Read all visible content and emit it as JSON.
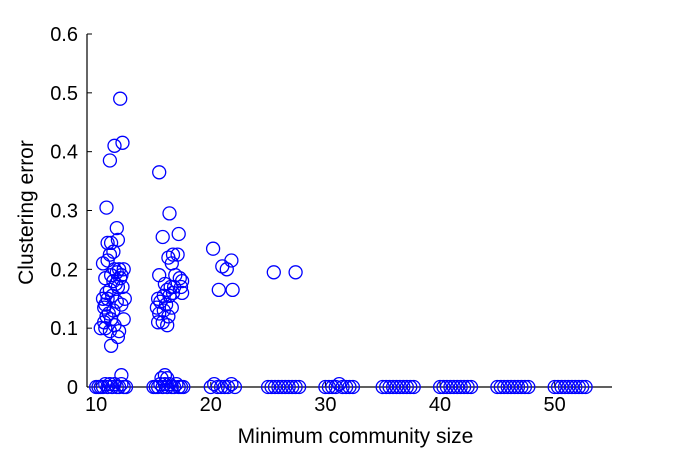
{
  "chart_data": {
    "type": "scatter",
    "title": "",
    "xlabel": "Minimum community size",
    "ylabel": "Clustering error",
    "xlim": [
      9.2,
      55
    ],
    "ylim": [
      0,
      0.6
    ],
    "xticks": [
      10,
      20,
      30,
      40,
      50
    ],
    "yticks": [
      0,
      0.1,
      0.2,
      0.3,
      0.4,
      0.5,
      0.6
    ],
    "grid": false,
    "legend": "none",
    "marker": "circle",
    "marker_color": "#0000ff",
    "series": [
      {
        "points": [
          [
            12.1,
            0.49
          ],
          [
            12.3,
            0.415
          ],
          [
            11.6,
            0.41
          ],
          [
            11.2,
            0.385
          ],
          [
            10.9,
            0.305
          ],
          [
            11.8,
            0.27
          ],
          [
            11.0,
            0.245
          ],
          [
            11.3,
            0.245
          ],
          [
            11.9,
            0.25
          ],
          [
            11.5,
            0.23
          ],
          [
            11.2,
            0.225
          ],
          [
            11.0,
            0.215
          ],
          [
            10.6,
            0.21
          ],
          [
            11.6,
            0.2
          ],
          [
            12.0,
            0.2
          ],
          [
            12.4,
            0.2
          ],
          [
            11.8,
            0.195
          ],
          [
            11.3,
            0.19
          ],
          [
            12.2,
            0.19
          ],
          [
            10.8,
            0.185
          ],
          [
            11.5,
            0.18
          ],
          [
            12.1,
            0.185
          ],
          [
            11.7,
            0.175
          ],
          [
            11.9,
            0.17
          ],
          [
            11.2,
            0.165
          ],
          [
            12.3,
            0.17
          ],
          [
            10.9,
            0.16
          ],
          [
            11.4,
            0.155
          ],
          [
            10.6,
            0.15
          ],
          [
            11.0,
            0.15
          ],
          [
            12.5,
            0.15
          ],
          [
            11.8,
            0.145
          ],
          [
            10.8,
            0.14
          ],
          [
            12.2,
            0.14
          ],
          [
            10.7,
            0.135
          ],
          [
            11.5,
            0.13
          ],
          [
            11.1,
            0.125
          ],
          [
            10.9,
            0.12
          ],
          [
            11.3,
            0.115
          ],
          [
            12.4,
            0.115
          ],
          [
            10.7,
            0.11
          ],
          [
            11.6,
            0.105
          ],
          [
            10.4,
            0.1
          ],
          [
            10.8,
            0.1
          ],
          [
            11.2,
            0.095
          ],
          [
            12.0,
            0.095
          ],
          [
            11.9,
            0.085
          ],
          [
            11.3,
            0.07
          ],
          [
            12.2,
            0.02
          ],
          [
            15.5,
            0.365
          ],
          [
            16.4,
            0.295
          ],
          [
            15.8,
            0.255
          ],
          [
            17.2,
            0.26
          ],
          [
            16.7,
            0.225
          ],
          [
            17.1,
            0.225
          ],
          [
            16.3,
            0.22
          ],
          [
            16.6,
            0.21
          ],
          [
            15.5,
            0.19
          ],
          [
            16.9,
            0.19
          ],
          [
            17.3,
            0.185
          ],
          [
            16.0,
            0.175
          ],
          [
            17.5,
            0.18
          ],
          [
            16.5,
            0.17
          ],
          [
            16.8,
            0.17
          ],
          [
            17.4,
            0.17
          ],
          [
            16.2,
            0.165
          ],
          [
            16.7,
            0.16
          ],
          [
            17.5,
            0.16
          ],
          [
            15.9,
            0.155
          ],
          [
            16.4,
            0.155
          ],
          [
            15.4,
            0.15
          ],
          [
            15.6,
            0.145
          ],
          [
            16.1,
            0.14
          ],
          [
            15.3,
            0.135
          ],
          [
            16.6,
            0.135
          ],
          [
            15.9,
            0.13
          ],
          [
            15.5,
            0.125
          ],
          [
            16.3,
            0.12
          ],
          [
            15.4,
            0.11
          ],
          [
            15.8,
            0.11
          ],
          [
            16.2,
            0.105
          ],
          [
            16.0,
            0.02
          ],
          [
            15.7,
            0.015
          ],
          [
            16.2,
            0.015
          ],
          [
            20.2,
            0.235
          ],
          [
            21.0,
            0.205
          ],
          [
            21.8,
            0.215
          ],
          [
            21.4,
            0.2
          ],
          [
            20.7,
            0.165
          ],
          [
            21.9,
            0.165
          ],
          [
            25.5,
            0.195
          ],
          [
            27.4,
            0.195
          ],
          [
            10.0,
            0
          ],
          [
            10.2,
            0
          ],
          [
            10.4,
            0
          ],
          [
            10.6,
            0
          ],
          [
            10.8,
            0.005
          ],
          [
            11.0,
            0
          ],
          [
            11.2,
            0.005
          ],
          [
            11.4,
            0
          ],
          [
            11.6,
            0.005
          ],
          [
            11.8,
            0
          ],
          [
            12.0,
            0
          ],
          [
            12.2,
            0.005
          ],
          [
            12.4,
            0
          ],
          [
            12.6,
            0
          ],
          [
            15.0,
            0
          ],
          [
            15.2,
            0
          ],
          [
            15.4,
            0
          ],
          [
            15.6,
            0.005
          ],
          [
            15.8,
            0
          ],
          [
            16.0,
            0.005
          ],
          [
            16.2,
            0
          ],
          [
            16.4,
            0.005
          ],
          [
            16.6,
            0
          ],
          [
            16.8,
            0
          ],
          [
            17.0,
            0.005
          ],
          [
            17.2,
            0
          ],
          [
            17.4,
            0
          ],
          [
            17.6,
            0
          ],
          [
            20.0,
            0
          ],
          [
            20.3,
            0.005
          ],
          [
            20.6,
            0
          ],
          [
            20.9,
            0
          ],
          [
            21.2,
            0
          ],
          [
            21.5,
            0
          ],
          [
            21.8,
            0.005
          ],
          [
            22.1,
            0
          ],
          [
            25.0,
            0
          ],
          [
            25.3,
            0
          ],
          [
            25.6,
            0
          ],
          [
            25.9,
            0
          ],
          [
            26.2,
            0
          ],
          [
            26.5,
            0
          ],
          [
            26.8,
            0
          ],
          [
            27.1,
            0
          ],
          [
            27.4,
            0
          ],
          [
            27.7,
            0
          ],
          [
            30.0,
            0
          ],
          [
            30.3,
            0
          ],
          [
            30.6,
            0
          ],
          [
            30.9,
            0
          ],
          [
            31.2,
            0.005
          ],
          [
            31.5,
            0
          ],
          [
            31.8,
            0
          ],
          [
            32.1,
            0
          ],
          [
            32.4,
            0
          ],
          [
            35.0,
            0
          ],
          [
            35.3,
            0
          ],
          [
            35.6,
            0
          ],
          [
            35.9,
            0
          ],
          [
            36.2,
            0
          ],
          [
            36.5,
            0
          ],
          [
            36.8,
            0
          ],
          [
            37.1,
            0
          ],
          [
            37.4,
            0
          ],
          [
            37.7,
            0
          ],
          [
            40.0,
            0
          ],
          [
            40.3,
            0
          ],
          [
            40.6,
            0
          ],
          [
            40.9,
            0
          ],
          [
            41.2,
            0
          ],
          [
            41.5,
            0
          ],
          [
            41.8,
            0
          ],
          [
            42.1,
            0
          ],
          [
            42.4,
            0
          ],
          [
            42.7,
            0
          ],
          [
            45.0,
            0
          ],
          [
            45.3,
            0
          ],
          [
            45.6,
            0
          ],
          [
            45.9,
            0
          ],
          [
            46.2,
            0
          ],
          [
            46.5,
            0
          ],
          [
            46.8,
            0
          ],
          [
            47.1,
            0
          ],
          [
            47.4,
            0
          ],
          [
            47.7,
            0
          ],
          [
            50.0,
            0
          ],
          [
            50.3,
            0
          ],
          [
            50.6,
            0
          ],
          [
            50.9,
            0
          ],
          [
            51.2,
            0
          ],
          [
            51.5,
            0
          ],
          [
            51.8,
            0
          ],
          [
            52.1,
            0
          ],
          [
            52.4,
            0
          ],
          [
            52.7,
            0
          ]
        ]
      }
    ]
  }
}
